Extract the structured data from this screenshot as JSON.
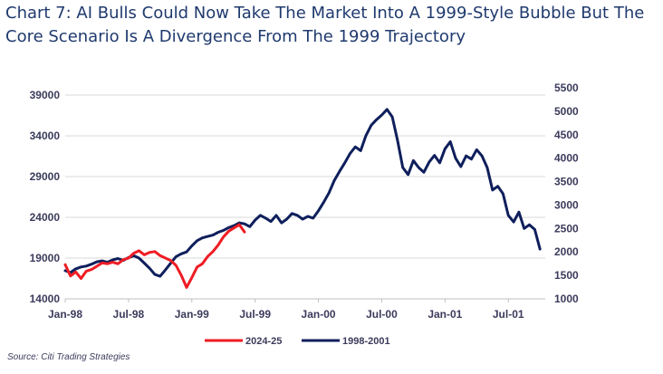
{
  "title_lines": [
    "Chart 7: AI Bulls Could Now Take The Market Into A 1999-Style Bubble But The",
    "Core Scenario Is A Divergence From The 1999 Trajectory"
  ],
  "source": "Source: Citi Trading Strategies",
  "colors": {
    "red": "#ee1c24",
    "navy": "#0f1f5c",
    "grid": "#d9d9d9",
    "text": "#3b3b5c",
    "title": "#1f3a6e"
  },
  "chart_data": {
    "type": "line",
    "title": "Chart 7: AI Bulls Could Now Take The Market Into A 1999-Style Bubble But The Core Scenario Is A Divergence From The 1999 Trajectory",
    "x_labels": [
      "Jan-98",
      "Jul-98",
      "Jan-99",
      "Jul-99",
      "Jan-00",
      "Jul-00",
      "Jan-01",
      "Jul-01"
    ],
    "x_unit": "months since Jan-98",
    "xlim": [
      0,
      45.5
    ],
    "left_axis": {
      "ticks": [
        14000,
        19000,
        24000,
        29000,
        34000,
        39000
      ],
      "ylim": [
        14000,
        39000
      ]
    },
    "right_axis": {
      "ticks": [
        1000,
        1500,
        2000,
        2500,
        3000,
        3500,
        4000,
        4500,
        5000,
        5500
      ],
      "ylim": [
        1000,
        5500
      ]
    },
    "legend": [
      "2024-25",
      "1998-2001"
    ],
    "series": [
      {
        "name": "1998-2001",
        "axis": "right",
        "x": [
          0,
          0.5,
          1,
          1.5,
          2,
          2.5,
          3,
          3.5,
          4,
          4.5,
          5,
          5.5,
          6,
          6.5,
          7,
          7.5,
          8,
          8.5,
          9,
          9.5,
          10,
          10.5,
          11,
          11.5,
          12,
          12.5,
          13,
          13.5,
          14,
          14.5,
          15,
          15.5,
          16,
          16.5,
          17,
          17.5,
          18,
          18.5,
          19,
          19.5,
          20,
          20.5,
          21,
          21.5,
          22,
          22.5,
          23,
          23.5,
          24,
          24.5,
          25,
          25.5,
          26,
          26.5,
          27,
          27.5,
          28,
          28.5,
          29,
          29.5,
          30,
          30.5,
          31,
          31.5,
          32,
          32.5,
          33,
          33.5,
          34,
          34.5,
          35,
          35.5,
          36,
          36.5,
          37,
          37.5,
          38,
          38.5,
          39,
          39.5,
          40,
          40.5,
          41,
          41.5,
          42,
          42.5,
          43,
          43.5,
          44,
          44.5,
          45
        ],
        "values": [
          1600,
          1560,
          1640,
          1680,
          1700,
          1740,
          1790,
          1810,
          1780,
          1830,
          1860,
          1820,
          1880,
          1920,
          1870,
          1760,
          1650,
          1520,
          1480,
          1620,
          1760,
          1900,
          1960,
          2000,
          2130,
          2240,
          2300,
          2330,
          2360,
          2420,
          2460,
          2520,
          2560,
          2620,
          2600,
          2540,
          2680,
          2780,
          2720,
          2650,
          2780,
          2620,
          2700,
          2820,
          2780,
          2700,
          2760,
          2720,
          2880,
          3060,
          3260,
          3520,
          3720,
          3900,
          4100,
          4240,
          4160,
          4480,
          4700,
          4820,
          4920,
          5040,
          4880,
          4380,
          3800,
          3650,
          3950,
          3800,
          3700,
          3920,
          4060,
          3900,
          4200,
          4350,
          4000,
          3820,
          4050,
          3980,
          4180,
          4050,
          3800,
          3320,
          3400,
          3240,
          2780,
          2640,
          2850,
          2500,
          2580,
          2480,
          2060
        ]
      },
      {
        "name": "2024-25",
        "axis": "left",
        "x": [
          0,
          0.5,
          1,
          1.5,
          2,
          2.5,
          3,
          3.5,
          4,
          4.5,
          5,
          5.5,
          6,
          6.5,
          7,
          7.5,
          8,
          8.5,
          9,
          9.5,
          10,
          10.5,
          11,
          11.5,
          12,
          12.5,
          13,
          13.5,
          14,
          14.5,
          15,
          15.5,
          16,
          16.5,
          17
        ],
        "values": [
          18200,
          16800,
          17300,
          16500,
          17400,
          17600,
          18000,
          18400,
          18300,
          18500,
          18300,
          18800,
          19000,
          19600,
          19900,
          19400,
          19700,
          19800,
          19300,
          19000,
          18700,
          18100,
          16900,
          15400,
          16600,
          17900,
          18300,
          19200,
          19800,
          20600,
          21600,
          22300,
          22700,
          23100,
          22200
        ]
      }
    ]
  }
}
